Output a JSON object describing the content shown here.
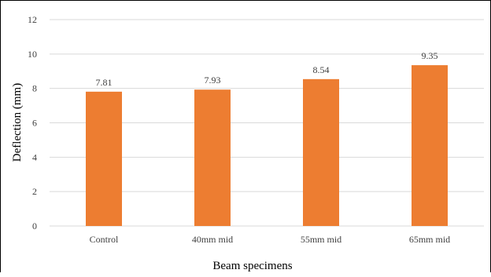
{
  "chart_data": {
    "type": "bar",
    "title": "",
    "xlabel": "Beam specimens",
    "ylabel": "Deflection (mm)",
    "categories": [
      "Control",
      "40mm mid",
      "55mm mid",
      "65mm mid"
    ],
    "values": [
      7.81,
      7.93,
      8.54,
      9.35
    ],
    "data_labels": [
      "7.81",
      "7.93",
      "8.54",
      "9.35"
    ],
    "ylim": [
      0,
      12
    ],
    "yticks": [
      0,
      2,
      4,
      6,
      8,
      10,
      12
    ],
    "grid": true,
    "legend": "none",
    "colors": {
      "bar": "#ED7D31",
      "grid": "#D9D9D9",
      "text": "#404040"
    }
  }
}
